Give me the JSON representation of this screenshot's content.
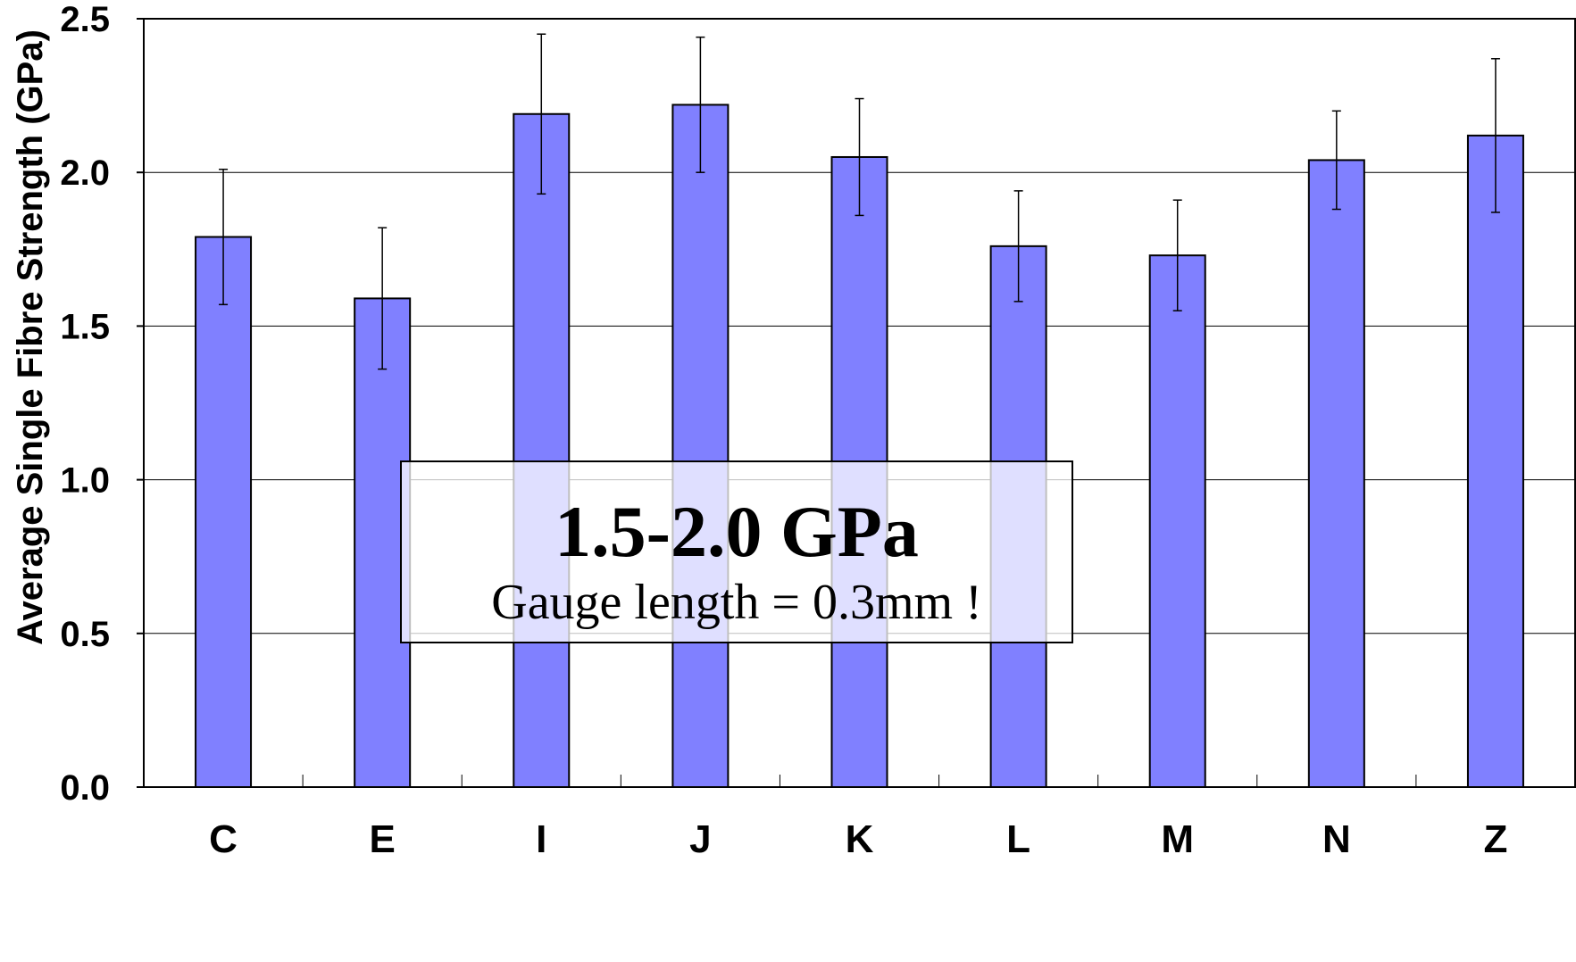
{
  "chart_data": {
    "type": "bar",
    "categories": [
      "C",
      "E",
      "I",
      "J",
      "K",
      "L",
      "M",
      "N",
      "Z"
    ],
    "values": [
      1.79,
      1.59,
      2.19,
      2.22,
      2.05,
      1.76,
      1.73,
      2.04,
      2.12
    ],
    "errors": [
      0.22,
      0.23,
      0.26,
      0.22,
      0.19,
      0.18,
      0.18,
      0.16,
      0.25
    ],
    "ylabel": "Average Single Fibre Strength (GPa)",
    "xlabel": "",
    "ylim": [
      0,
      2.5
    ],
    "yticks": [
      "0.0",
      "0.5",
      "1.0",
      "1.5",
      "2.0",
      "2.5"
    ],
    "grid": true,
    "legend": "none",
    "colors": {
      "bar": "#8080ff",
      "annotation_fill": "#ffffff"
    },
    "annotation": {
      "main": "1.5-2.0 GPa",
      "sub": "Gauge length = 0.3mm !"
    }
  }
}
